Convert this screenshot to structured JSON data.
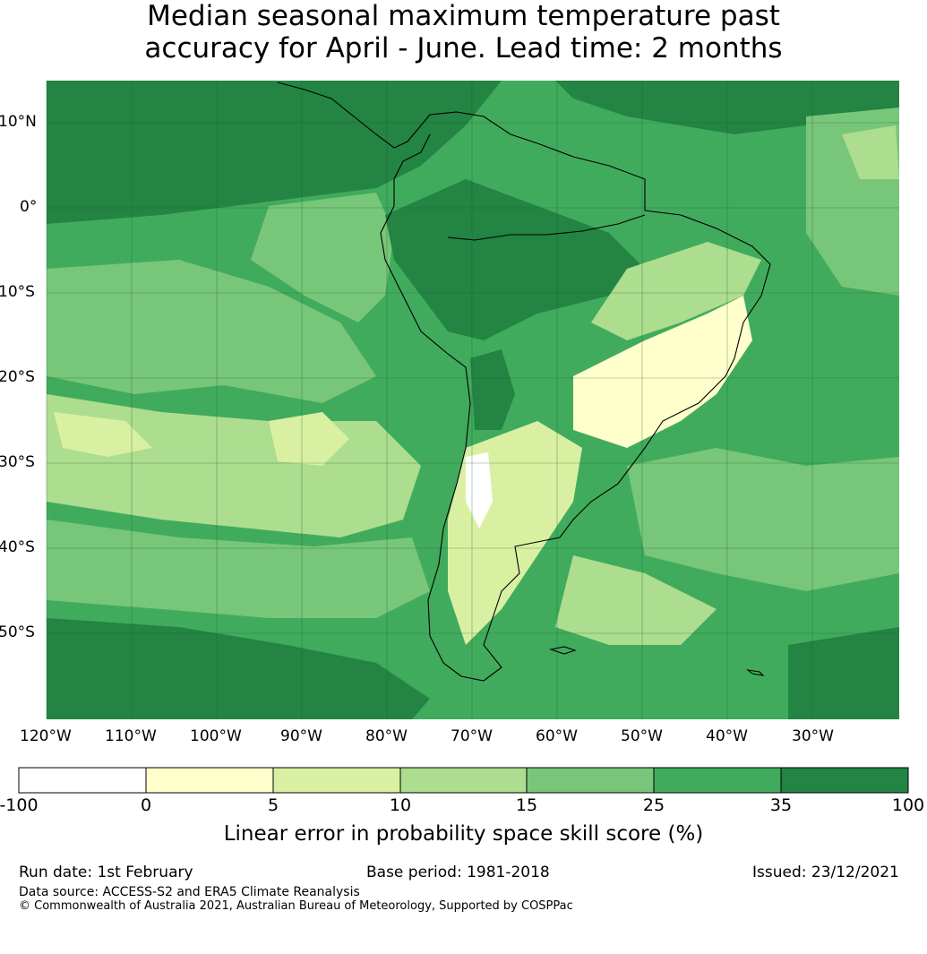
{
  "title": {
    "line1": "Median seasonal maximum temperature past",
    "line2": "accuracy for April - June. Lead time: 2 months"
  },
  "map": {
    "lat_labels": [
      "10°N",
      "0°",
      "10°S",
      "20°S",
      "30°S",
      "40°S",
      "50°S"
    ],
    "lon_labels": [
      "120°W",
      "110°W",
      "100°W",
      "90°W",
      "80°W",
      "70°W",
      "60°W",
      "50°W",
      "40°W",
      "30°W"
    ]
  },
  "colorbar": {
    "ticks": [
      "-100",
      "0",
      "5",
      "10",
      "15",
      "25",
      "35",
      "100"
    ],
    "colors": [
      "#ffffff",
      "#ffffcc",
      "#d9f0a3",
      "#addd8e",
      "#78c679",
      "#41ab5d",
      "#238443"
    ],
    "caption": "Linear error in probability space skill score (%)"
  },
  "footer": {
    "run_date": "Run date: 1st February",
    "base_period": "Base period: 1981-2018",
    "issued": "Issued: 23/12/2021",
    "data_source": "Data source: ACCESS-S2 and ERA5 Climate Reanalysis",
    "copyright": "© Commonwealth of Australia 2021, Australian Bureau of Meteorology, Supported by COSPPac"
  }
}
